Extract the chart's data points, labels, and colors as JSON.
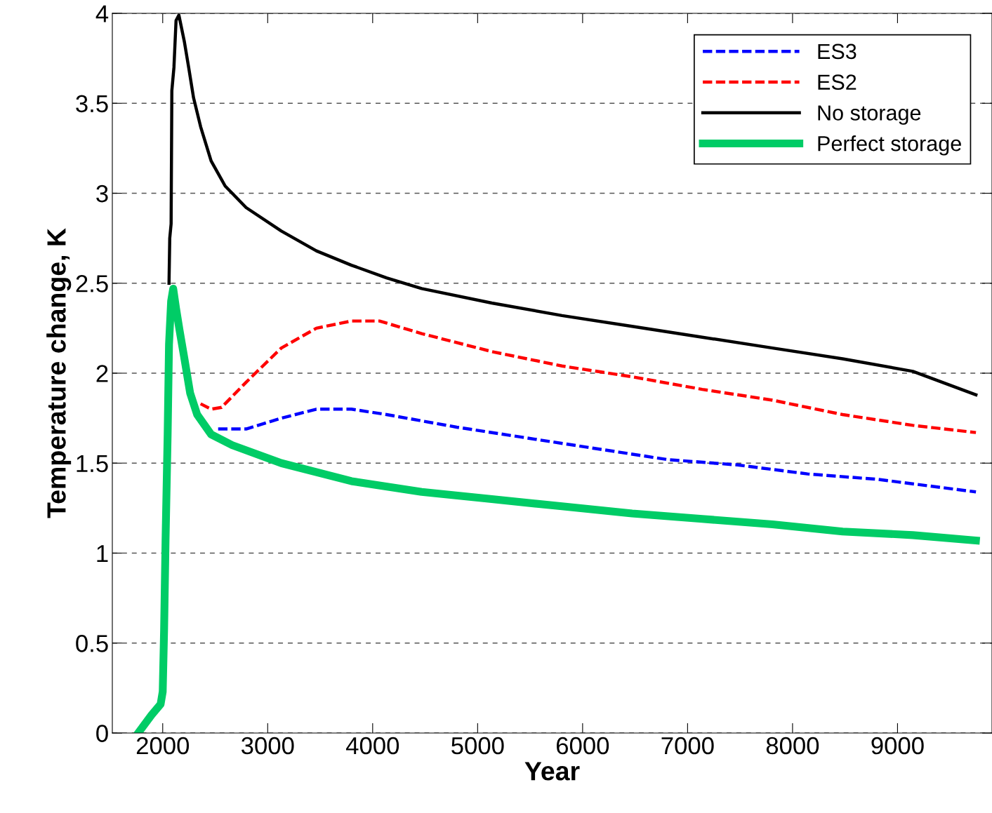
{
  "chart_data": {
    "type": "line",
    "xlabel": "Year",
    "ylabel": "Temperature change, K",
    "xlim": [
      1520,
      9900
    ],
    "xticks": [
      2000,
      3000,
      4000,
      5000,
      6000,
      7000,
      8000,
      9000
    ],
    "ylim": [
      0,
      4
    ],
    "yticks": [
      0,
      0.5,
      1,
      1.5,
      2,
      2.5,
      3,
      3.5,
      4
    ],
    "grid": "y",
    "legend": "top right",
    "marker": "none",
    "series": [
      {
        "name": "ES3",
        "color": "#0000ff",
        "line_style": "dashed",
        "x": [
          2528,
          2795,
          3130,
          3464,
          3798,
          4132,
          4801,
          5469,
          6137,
          6806,
          7475,
          8143,
          8811,
          9747
        ],
        "values": [
          1.69,
          1.69,
          1.75,
          1.8,
          1.8,
          1.77,
          1.7,
          1.64,
          1.58,
          1.52,
          1.49,
          1.44,
          1.41,
          1.34
        ]
      },
      {
        "name": "ES2",
        "color": "#ff0000",
        "line_style": "dashed",
        "x": [
          2361,
          2461,
          2561,
          2795,
          3130,
          3464,
          3798,
          4065,
          4467,
          5135,
          5804,
          6472,
          7140,
          7809,
          8477,
          9146,
          9747
        ],
        "values": [
          1.83,
          1.8,
          1.81,
          1.95,
          2.14,
          2.25,
          2.29,
          2.29,
          2.22,
          2.12,
          2.04,
          1.98,
          1.91,
          1.85,
          1.77,
          1.71,
          1.67
        ]
      },
      {
        "name": "No storage",
        "color": "#000000",
        "line_style": "solid",
        "x": [
          2060,
          2067,
          2080,
          2087,
          2107,
          2127,
          2154,
          2207,
          2247,
          2294,
          2361,
          2461,
          2595,
          2795,
          3130,
          3464,
          3798,
          4132,
          4467,
          5135,
          5804,
          6472,
          7140,
          7809,
          8477,
          9146,
          9747
        ],
        "values": [
          2.5,
          2.75,
          2.83,
          3.57,
          3.7,
          3.96,
          3.99,
          3.84,
          3.7,
          3.53,
          3.37,
          3.18,
          3.04,
          2.92,
          2.79,
          2.68,
          2.6,
          2.53,
          2.47,
          2.39,
          2.32,
          2.26,
          2.2,
          2.14,
          2.08,
          2.01,
          1.88
        ]
      },
      {
        "name": "Perfect storage",
        "color": "#00cc66",
        "line_style": "solid",
        "x": [
          1766,
          1893,
          1980,
          2000,
          2013,
          2027,
          2047,
          2060,
          2080,
          2100,
          2127,
          2160,
          2207,
          2261,
          2328,
          2461,
          2662,
          3130,
          3798,
          4467,
          5135,
          5804,
          6472,
          7140,
          7809,
          8477,
          9146,
          9747
        ],
        "values": [
          0,
          0.1,
          0.16,
          0.23,
          0.57,
          1.07,
          1.66,
          2.16,
          2.4,
          2.47,
          2.36,
          2.24,
          2.08,
          1.89,
          1.77,
          1.66,
          1.6,
          1.5,
          1.4,
          1.34,
          1.3,
          1.26,
          1.22,
          1.19,
          1.16,
          1.12,
          1.1,
          1.07
        ]
      }
    ]
  }
}
